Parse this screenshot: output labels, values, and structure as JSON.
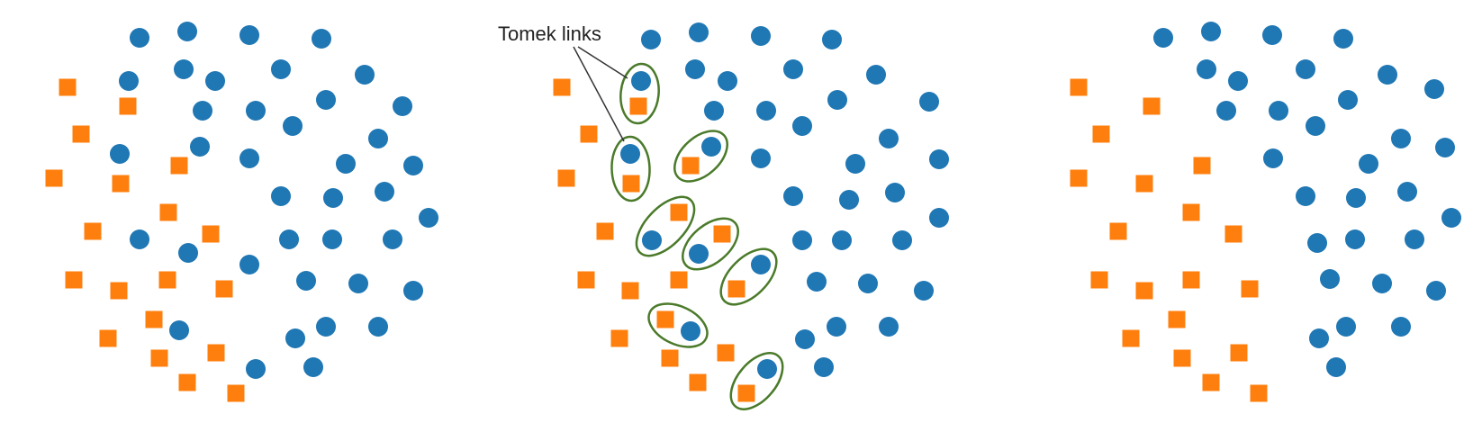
{
  "colors": {
    "majority": "#1f77b4",
    "minority": "#ff7f0e",
    "link_ring": "#4a7a2a",
    "annotation": "#333333",
    "background": "#ffffff"
  },
  "marker_shapes": {
    "majority": "circle",
    "minority": "square"
  },
  "annotation": {
    "label": "Tomek links"
  },
  "panels": [
    {
      "id": "original",
      "majority": [
        [
          155,
          42
        ],
        [
          208,
          35
        ],
        [
          277,
          39
        ],
        [
          357,
          43
        ],
        [
          143,
          90
        ],
        [
          204,
          77
        ],
        [
          239,
          90
        ],
        [
          312,
          77
        ],
        [
          405,
          83
        ],
        [
          225,
          123
        ],
        [
          284,
          123
        ],
        [
          325,
          140
        ],
        [
          362,
          111
        ],
        [
          447,
          118
        ],
        [
          133,
          171
        ],
        [
          222,
          163
        ],
        [
          277,
          176
        ],
        [
          384,
          182
        ],
        [
          420,
          154
        ],
        [
          459,
          184
        ],
        [
          312,
          218
        ],
        [
          370,
          220
        ],
        [
          427,
          213
        ],
        [
          476,
          242
        ],
        [
          155,
          266
        ],
        [
          209,
          281
        ],
        [
          321,
          266
        ],
        [
          369,
          266
        ],
        [
          436,
          266
        ],
        [
          277,
          294
        ],
        [
          340,
          312
        ],
        [
          398,
          315
        ],
        [
          459,
          323
        ],
        [
          199,
          367
        ],
        [
          362,
          363
        ],
        [
          420,
          363
        ],
        [
          328,
          376
        ],
        [
          284,
          410
        ],
        [
          348,
          408
        ]
      ],
      "minority": [
        [
          75,
          97
        ],
        [
          142,
          118
        ],
        [
          90,
          149
        ],
        [
          60,
          198
        ],
        [
          134,
          204
        ],
        [
          199,
          184
        ],
        [
          187,
          236
        ],
        [
          103,
          257
        ],
        [
          234,
          260
        ],
        [
          82,
          311
        ],
        [
          132,
          323
        ],
        [
          186,
          311
        ],
        [
          249,
          321
        ],
        [
          171,
          355
        ],
        [
          120,
          376
        ],
        [
          177,
          398
        ],
        [
          240,
          392
        ],
        [
          208,
          425
        ],
        [
          262,
          437
        ]
      ]
    },
    {
      "id": "links",
      "majority": [
        [
          723,
          44
        ],
        [
          776,
          36
        ],
        [
          845,
          40
        ],
        [
          924,
          44
        ],
        [
          712,
          90
        ],
        [
          772,
          77
        ],
        [
          808,
          90
        ],
        [
          881,
          77
        ],
        [
          973,
          83
        ],
        [
          793,
          123
        ],
        [
          851,
          123
        ],
        [
          891,
          140
        ],
        [
          930,
          111
        ],
        [
          1032,
          113
        ],
        [
          700,
          171
        ],
        [
          790,
          163
        ],
        [
          845,
          176
        ],
        [
          950,
          182
        ],
        [
          987,
          154
        ],
        [
          1043,
          177
        ],
        [
          881,
          218
        ],
        [
          943,
          222
        ],
        [
          994,
          214
        ],
        [
          1043,
          242
        ],
        [
          724,
          267
        ],
        [
          776,
          282
        ],
        [
          891,
          267
        ],
        [
          935,
          267
        ],
        [
          1002,
          267
        ],
        [
          845,
          294
        ],
        [
          907,
          313
        ],
        [
          964,
          315
        ],
        [
          1026,
          323
        ],
        [
          767,
          368
        ],
        [
          894,
          377
        ],
        [
          929,
          363
        ],
        [
          987,
          363
        ],
        [
          852,
          410
        ],
        [
          915,
          408
        ]
      ],
      "minority": [
        [
          624,
          97
        ],
        [
          709,
          118
        ],
        [
          654,
          149
        ],
        [
          629,
          198
        ],
        [
          701,
          204
        ],
        [
          767,
          184
        ],
        [
          754,
          236
        ],
        [
          672,
          257
        ],
        [
          802,
          260
        ],
        [
          651,
          311
        ],
        [
          700,
          323
        ],
        [
          754,
          311
        ],
        [
          818,
          321
        ],
        [
          739,
          355
        ],
        [
          688,
          376
        ],
        [
          744,
          398
        ],
        [
          806,
          392
        ],
        [
          775,
          425
        ],
        [
          829,
          437
        ]
      ],
      "links": [
        {
          "maj": [
            712,
            90
          ],
          "min": [
            709,
            118
          ]
        },
        {
          "maj": [
            700,
            171
          ],
          "min": [
            701,
            204
          ]
        },
        {
          "maj": [
            790,
            163
          ],
          "min": [
            767,
            184
          ]
        },
        {
          "maj": [
            724,
            267
          ],
          "min": [
            754,
            236
          ]
        },
        {
          "maj": [
            776,
            282
          ],
          "min": [
            802,
            260
          ]
        },
        {
          "maj": [
            845,
            294
          ],
          "min": [
            818,
            321
          ]
        },
        {
          "maj": [
            767,
            368
          ],
          "min": [
            739,
            355
          ]
        },
        {
          "maj": [
            852,
            410
          ],
          "min": [
            829,
            437
          ]
        }
      ]
    },
    {
      "id": "cleaned",
      "majority": [
        [
          1292,
          42
        ],
        [
          1345,
          35
        ],
        [
          1413,
          39
        ],
        [
          1492,
          43
        ],
        [
          1340,
          77
        ],
        [
          1375,
          90
        ],
        [
          1450,
          77
        ],
        [
          1541,
          83
        ],
        [
          1593,
          99
        ],
        [
          1362,
          123
        ],
        [
          1420,
          123
        ],
        [
          1461,
          140
        ],
        [
          1497,
          111
        ],
        [
          1605,
          164
        ],
        [
          1414,
          176
        ],
        [
          1520,
          182
        ],
        [
          1556,
          154
        ],
        [
          1450,
          218
        ],
        [
          1506,
          220
        ],
        [
          1563,
          213
        ],
        [
          1612,
          242
        ],
        [
          1463,
          270
        ],
        [
          1505,
          266
        ],
        [
          1571,
          266
        ],
        [
          1477,
          310
        ],
        [
          1535,
          315
        ],
        [
          1595,
          323
        ],
        [
          1465,
          376
        ],
        [
          1495,
          363
        ],
        [
          1556,
          363
        ],
        [
          1484,
          408
        ]
      ],
      "minority": [
        [
          1198,
          97
        ],
        [
          1279,
          118
        ],
        [
          1223,
          149
        ],
        [
          1198,
          198
        ],
        [
          1271,
          204
        ],
        [
          1335,
          184
        ],
        [
          1323,
          236
        ],
        [
          1242,
          257
        ],
        [
          1370,
          260
        ],
        [
          1221,
          311
        ],
        [
          1271,
          323
        ],
        [
          1323,
          311
        ],
        [
          1388,
          321
        ],
        [
          1307,
          355
        ],
        [
          1256,
          376
        ],
        [
          1313,
          398
        ],
        [
          1376,
          392
        ],
        [
          1345,
          425
        ],
        [
          1398,
          437
        ]
      ]
    }
  ]
}
